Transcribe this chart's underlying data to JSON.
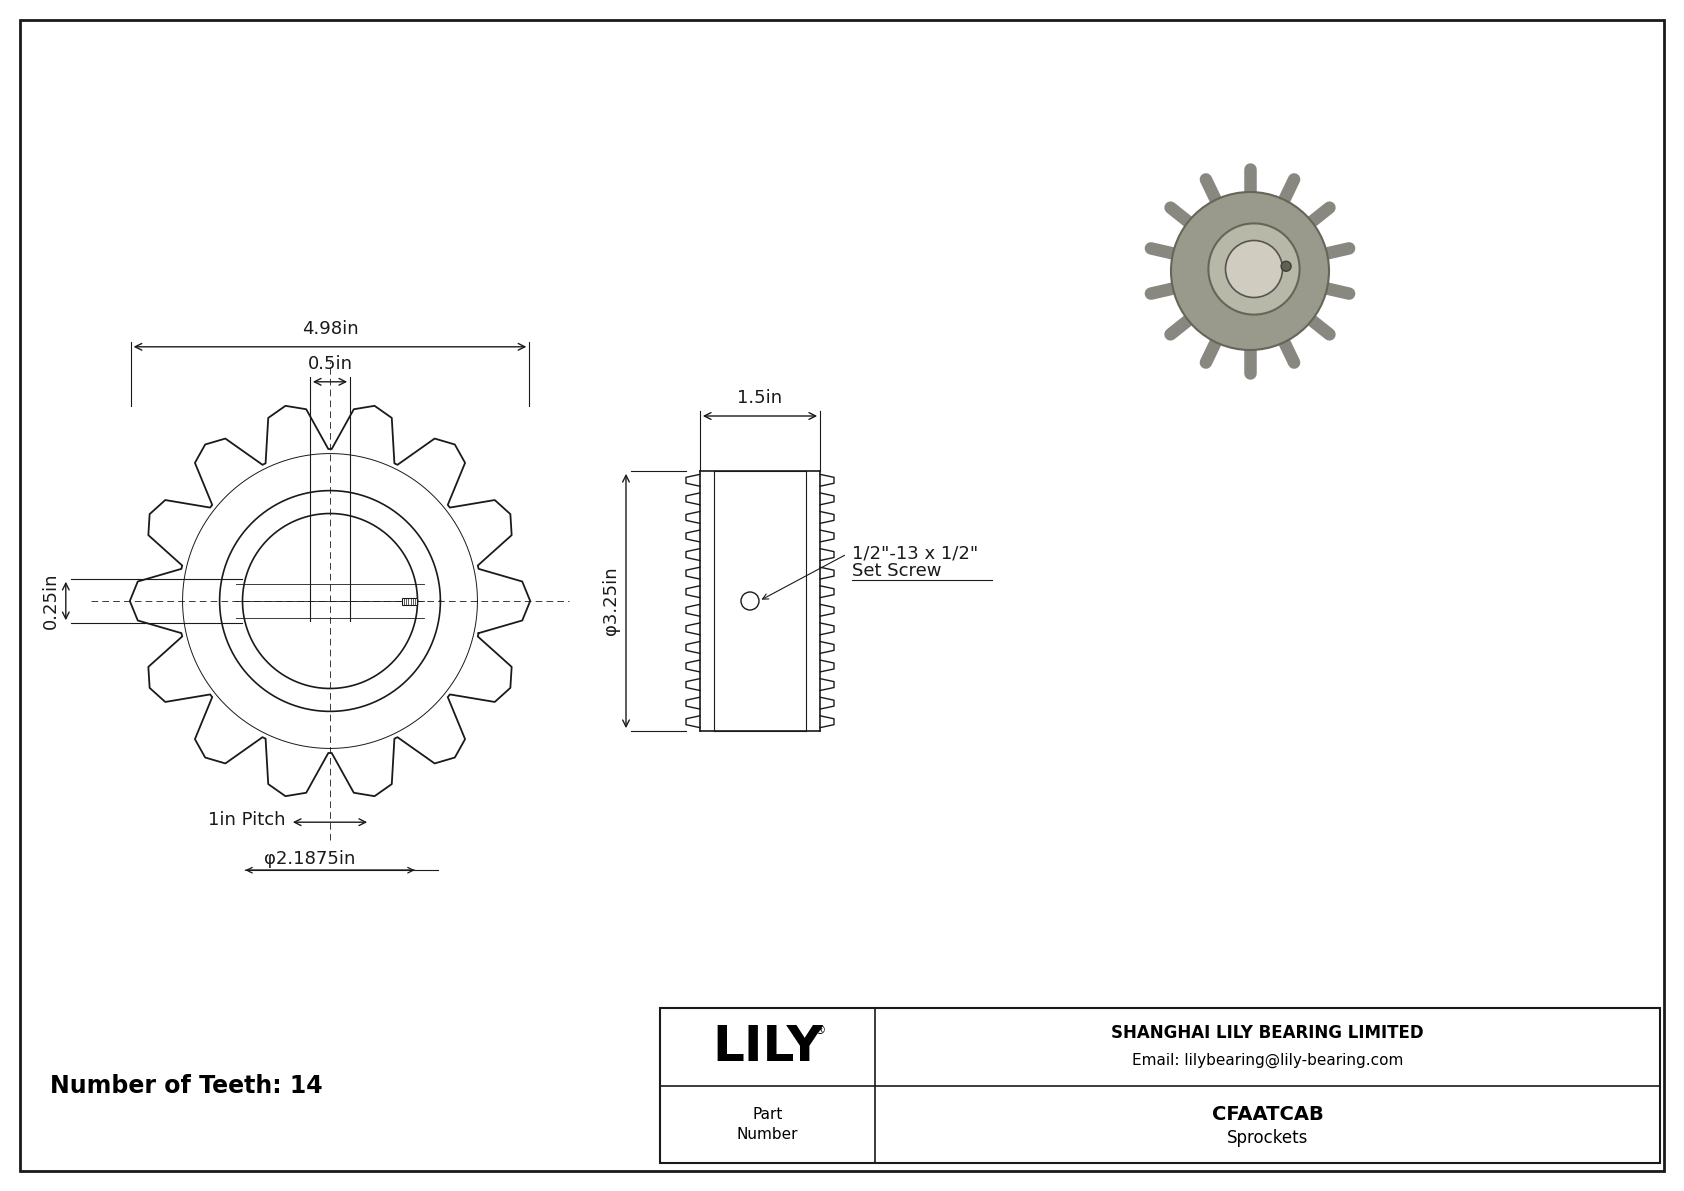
{
  "bg_color": "#ffffff",
  "line_color": "#1a1a1a",
  "border_color": "#1a1a1a",
  "title_bottom_text": "Number of Teeth: 14",
  "dim_498": "4.98in",
  "dim_05": "0.5in",
  "dim_025": "0.25in",
  "dim_15": "1.5in",
  "dim_325": "φ3.25in",
  "dim_pitch": "1in Pitch",
  "dim_bore": "φ2.1875in",
  "set_screw_line1": "1/2\"-13 x 1/2\"",
  "set_screw_line2": "Set Screw",
  "part_number": "CFAATCAB",
  "category": "Sprockets",
  "company": "SHANGHAI LILY BEARING LIMITED",
  "email": "Email: lilybearing@lily-bearing.com",
  "logo_text": "LILY",
  "logo_reg": "®",
  "num_teeth": 14,
  "font_size_dim": 13,
  "font_size_label": 13,
  "font_size_title": 17,
  "font_size_logo": 36,
  "font_size_company": 12
}
